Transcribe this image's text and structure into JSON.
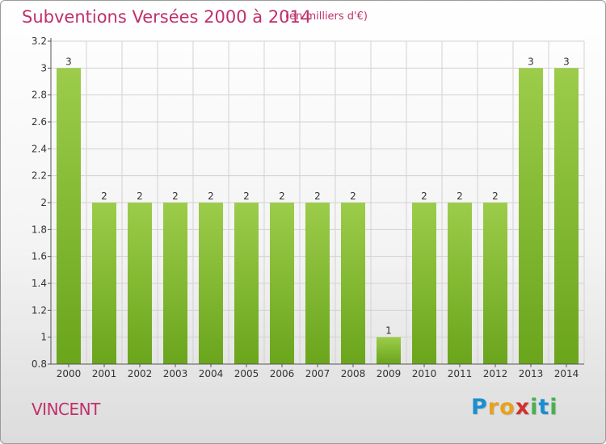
{
  "header": {
    "title": "Subventions Versées 2000 à 2014",
    "unit": "(en milliers d'€)"
  },
  "footer": {
    "commune": "VINCENT",
    "logo_letters": [
      {
        "char": "P",
        "color": "#1a8fd0"
      },
      {
        "char": "r",
        "color": "#e8a21a"
      },
      {
        "char": "o",
        "color": "#e8a21a"
      },
      {
        "char": "x",
        "color": "#d32f2f"
      },
      {
        "char": "i",
        "color": "#4caf50"
      },
      {
        "char": "t",
        "color": "#1a8fd0"
      },
      {
        "char": "i",
        "color": "#4caf50"
      }
    ]
  },
  "colors": {
    "bar_top": "#9ccc4a",
    "bar_bottom": "#6aa51c",
    "grid": "#d2d2d2",
    "axis": "#555555",
    "accent_text": "#c0306a"
  },
  "chart_data": {
    "type": "bar",
    "categories": [
      "2000",
      "2001",
      "2002",
      "2003",
      "2004",
      "2005",
      "2006",
      "2007",
      "2008",
      "2009",
      "2010",
      "2011",
      "2012",
      "2013",
      "2014"
    ],
    "values": [
      3,
      2,
      2,
      2,
      2,
      2,
      2,
      2,
      2,
      1,
      2,
      2,
      2,
      3,
      3
    ],
    "data_labels": [
      "3",
      "2",
      "2",
      "2",
      "2",
      "2",
      "2",
      "2",
      "2",
      "1",
      "2",
      "2",
      "2",
      "3",
      "3"
    ],
    "y_ticks": [
      "0.8",
      "1",
      "1.2",
      "1.4",
      "1.6",
      "1.8",
      "2",
      "2.2",
      "2.4",
      "2.6",
      "2.8",
      "3",
      "3.2"
    ],
    "ylim": [
      0.8,
      3.2
    ],
    "title": "Subventions Versées 2000 à 2014",
    "xlabel": "",
    "ylabel": "",
    "grid": true,
    "legend": "none"
  }
}
